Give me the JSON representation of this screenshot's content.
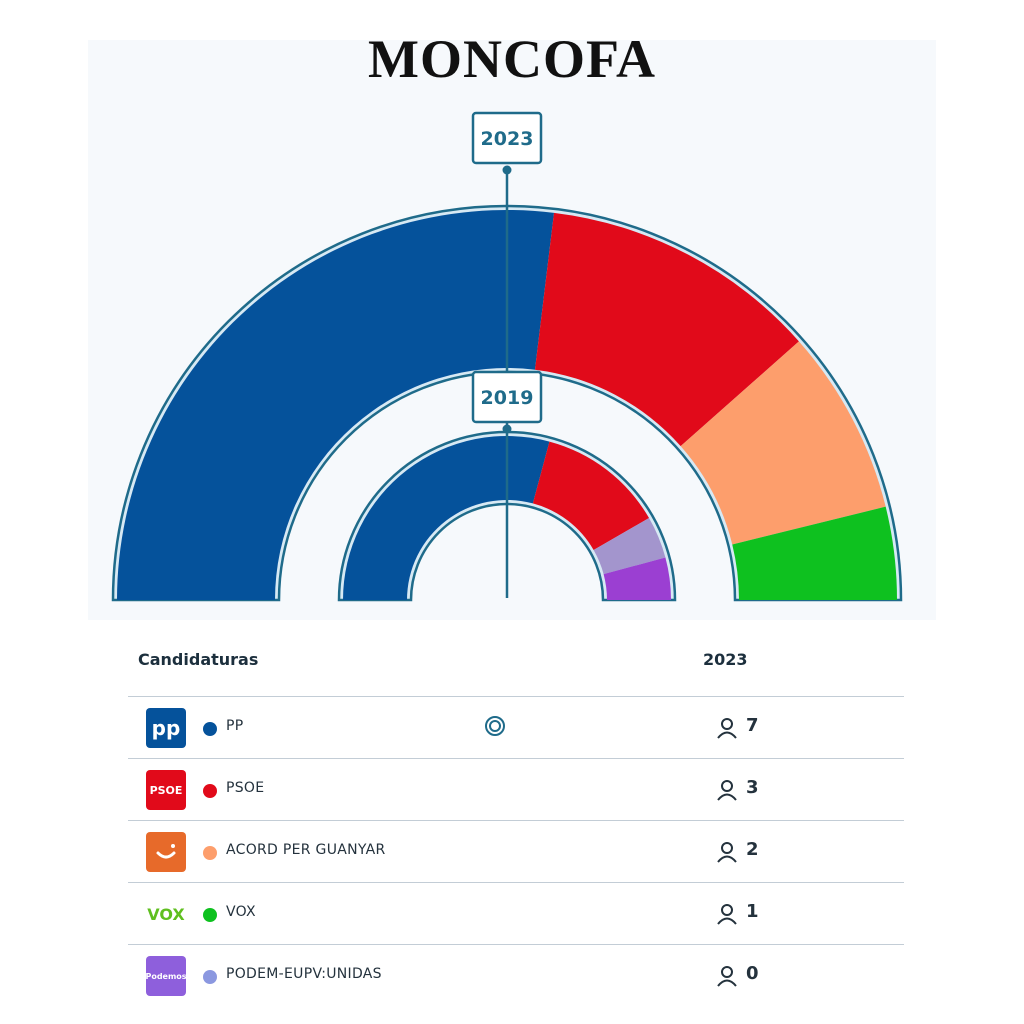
{
  "title": "MONCOFA",
  "chart_data": [
    {
      "type": "pie",
      "subtype": "parliament-semicircle",
      "year_label": "2023",
      "series": [
        {
          "name": "PP",
          "value": 7,
          "color": "#05529b"
        },
        {
          "name": "PSOE",
          "value": 3,
          "color": "#e10a1a"
        },
        {
          "name": "ACORD PER GUANYAR",
          "value": 2,
          "color": "#fd9e6c"
        },
        {
          "name": "VOX",
          "value": 1,
          "color": "#0ec11f"
        }
      ]
    },
    {
      "type": "pie",
      "subtype": "parliament-semicircle",
      "year_label": "2019",
      "series": [
        {
          "name": "PP",
          "value": 7,
          "color": "#05529b"
        },
        {
          "name": "PSOE",
          "value": 3,
          "color": "#e10a1a"
        },
        {
          "name": "",
          "value": 1,
          "color": "#a395cd"
        },
        {
          "name": "",
          "value": 1,
          "color": "#9b3fd2"
        }
      ]
    }
  ],
  "table": {
    "header_name": "Candidaturas",
    "header_year": "2023",
    "rows": [
      {
        "logo_text": "pp",
        "logo_color": "#05529b",
        "dot_color": "#05529b",
        "name": "PP",
        "seats": "7",
        "winner": true
      },
      {
        "logo_text": "PSOE",
        "logo_color": "#e10a1a",
        "dot_color": "#e10a1a",
        "name": "PSOE",
        "seats": "3",
        "winner": false
      },
      {
        "logo_text": "",
        "logo_icon": "smile-icon",
        "logo_color": "#e76a2a",
        "dot_color": "#fd9e6c",
        "name": "ACORD PER GUANYAR",
        "seats": "2",
        "winner": false
      },
      {
        "logo_text": "VOX",
        "logo_color": "#ffffff",
        "text_color": "#5fbf1f",
        "dot_color": "#0ec11f",
        "name": "VOX",
        "seats": "1",
        "winner": false
      },
      {
        "logo_text": "Podemos",
        "logo_color": "#8e5fdc",
        "dot_color": "#8b98e0",
        "name": "PODEM-EUPV:UNIDAS",
        "seats": "0",
        "winner": false
      }
    ]
  }
}
